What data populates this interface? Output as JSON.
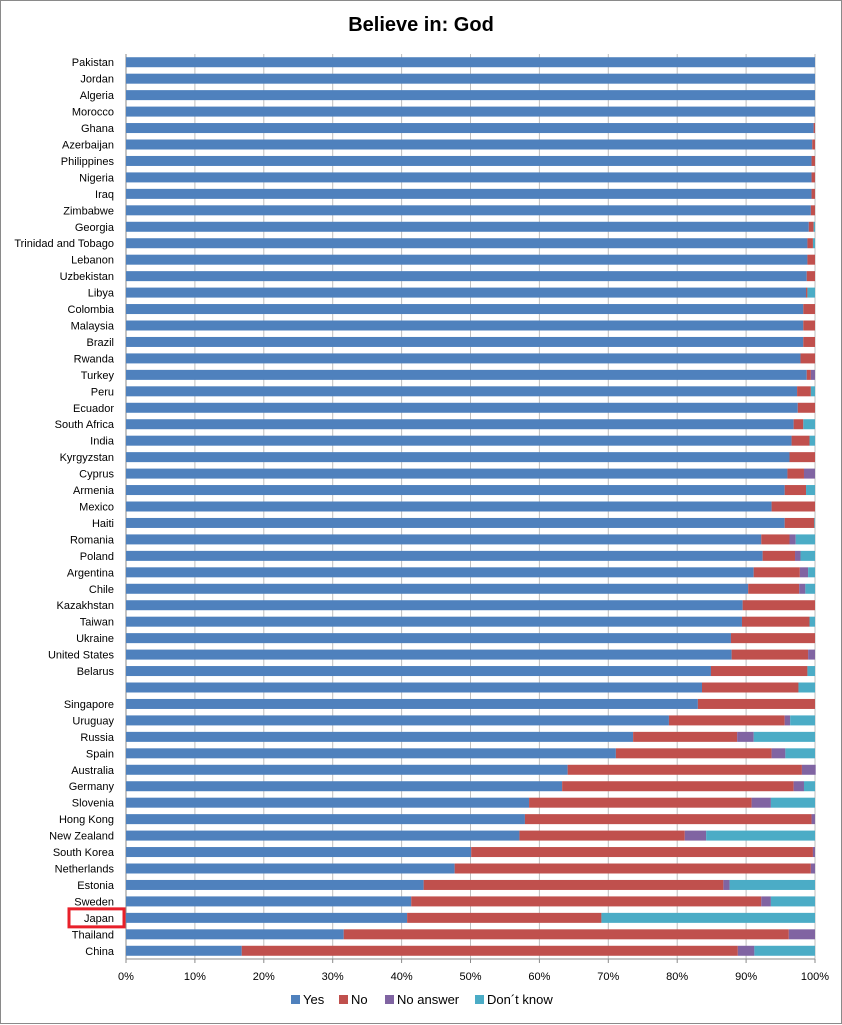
{
  "chart_data": {
    "type": "bar",
    "orientation": "horizontal",
    "stacked": true,
    "title": "Believe in: God",
    "xlabel": "",
    "ylabel": "",
    "xlim": [
      0,
      100
    ],
    "x_ticks": [
      "0%",
      "10%",
      "20%",
      "30%",
      "40%",
      "50%",
      "60%",
      "70%",
      "80%",
      "90%",
      "100%"
    ],
    "grid": true,
    "legend_position": "bottom",
    "highlighted_category": "Japan",
    "highlight_color": "#e8202a",
    "categories": [
      "Pakistan",
      "Jordan",
      "Algeria",
      "Morocco",
      "Ghana",
      "Azerbaijan",
      "Philippines",
      "Nigeria",
      "Iraq",
      "Zimbabwe",
      "Georgia",
      "Trinidad and Tobago",
      "Lebanon",
      "Uzbekistan",
      "Libya",
      "Colombia",
      "Malaysia",
      "Brazil",
      "Rwanda",
      "Turkey",
      "Peru",
      "Ecuador",
      "South Africa",
      "India",
      "Kyrgyzstan",
      "Cyprus",
      "Armenia",
      "Mexico",
      "Haiti",
      "Romania",
      "Poland",
      "Argentina",
      "Chile",
      "Kazakhstan",
      "Taiwan",
      "Ukraine",
      "United States",
      "Belarus",
      "",
      "Singapore",
      "Uruguay",
      "Russia",
      "Spain",
      "Australia",
      "Germany",
      "Slovenia",
      "Hong Kong",
      "New Zealand",
      "South Korea",
      "Netherlands",
      "Estonia",
      "Sweden",
      "Japan",
      "Thailand",
      "China"
    ],
    "series": [
      {
        "name": "Yes",
        "color": "#4f81bd",
        "values": [
          100,
          100,
          100,
          100,
          99.8,
          99.6,
          99.5,
          99.5,
          99.5,
          99.4,
          99.1,
          98.9,
          98.9,
          98.8,
          98.7,
          98.3,
          98.3,
          98.3,
          97.9,
          98.8,
          97.4,
          97.5,
          96.9,
          96.6,
          96.3,
          96,
          95.6,
          93.7,
          95.6,
          92.2,
          92.4,
          91.1,
          90.3,
          89.5,
          89.4,
          87.8,
          87.9,
          84.9,
          83.6,
          83,
          78.8,
          73.6,
          71.1,
          64.1,
          63.3,
          58.5,
          57.9,
          57.1,
          50.1,
          47.7,
          43.2,
          41.4,
          40.8,
          31.6,
          16.8
        ]
      },
      {
        "name": "No",
        "color": "#c0504d",
        "values": [
          0,
          0,
          0,
          0,
          0.2,
          0.4,
          0.5,
          0.5,
          0.5,
          0.6,
          0.7,
          0.8,
          1.1,
          1.2,
          0.2,
          1.7,
          1.7,
          1.7,
          2.1,
          0.6,
          2,
          2.5,
          1.4,
          2.6,
          3.7,
          2.4,
          3.1,
          6.3,
          4.3,
          4.1,
          4.7,
          6.7,
          7.4,
          10.5,
          9.8,
          12.2,
          11.1,
          14,
          14,
          17,
          16.8,
          15.1,
          22.6,
          34,
          33.6,
          32.3,
          41.6,
          24,
          49.6,
          51.7,
          43.5,
          50.8,
          28.2,
          64.6,
          72
        ]
      },
      {
        "name": "No answer",
        "color": "#8064a2",
        "values": [
          0,
          0,
          0,
          0,
          0,
          0,
          0,
          0,
          0,
          0,
          0,
          0,
          0,
          0,
          0,
          0,
          0,
          0,
          0,
          0.6,
          0,
          0,
          0,
          0,
          0,
          1.6,
          0,
          0,
          0,
          0.9,
          0.8,
          1.2,
          0.9,
          0,
          0,
          0,
          1,
          0,
          0,
          0,
          0.8,
          2.4,
          2,
          2,
          1.5,
          2.8,
          0.5,
          3.1,
          0.3,
          0.6,
          0.9,
          1.4,
          0,
          3.8,
          2.4
        ]
      },
      {
        "name": "Don´t know",
        "color": "#4bacc6",
        "values": [
          0,
          0,
          0,
          0,
          0,
          0,
          0,
          0,
          0,
          0,
          0.2,
          0.3,
          0,
          0,
          1.1,
          0,
          0,
          0,
          0,
          0,
          0.6,
          0,
          1.7,
          0.8,
          0,
          0,
          1.3,
          0,
          0.1,
          2.8,
          2.1,
          1,
          1.4,
          0,
          0.8,
          0,
          0,
          1.1,
          2.4,
          0,
          3.6,
          8.9,
          4.3,
          0,
          1.6,
          6.4,
          0,
          15.8,
          0,
          0,
          12.4,
          6.4,
          31,
          0,
          8.8
        ]
      }
    ]
  }
}
